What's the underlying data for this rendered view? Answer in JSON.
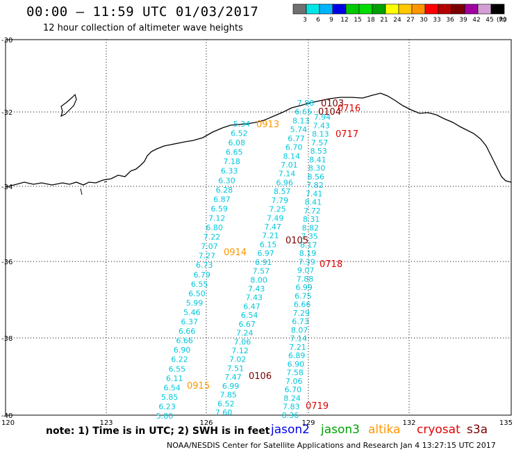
{
  "header": {
    "title": "00:00 – 11:59 UTC 01/03/2017",
    "subtitle": "12 hour collection of altimeter wave heights"
  },
  "colorbar": {
    "colors": [
      "#707070",
      "#00e6e6",
      "#00b4ff",
      "#0000e6",
      "#00c800",
      "#00dc00",
      "#00a000",
      "#ffff00",
      "#ffc800",
      "#ff9600",
      "#ff0000",
      "#b40000",
      "#7a0000",
      "#a000a0",
      "#d2a0d2",
      "#000000"
    ],
    "ticks": [
      "3",
      "6",
      "9",
      "12",
      "15",
      "18",
      "21",
      "24",
      "27",
      "30",
      "33",
      "36",
      "39",
      "42",
      "45",
      "70"
    ],
    "unit": "(ft)"
  },
  "axes": {
    "x_ticks": [
      "120",
      "123",
      "126",
      "129",
      "132",
      "135"
    ],
    "y_ticks": [
      "-30",
      "-32",
      "-34",
      "-36",
      "-38",
      "-40"
    ]
  },
  "passes": [
    {
      "label": "0103",
      "color": "#7a0000"
    },
    {
      "label": "0104",
      "color": "#7a0000"
    },
    {
      "label": "0716",
      "color": "#e00000"
    },
    {
      "label": "0717",
      "color": "#e00000"
    },
    {
      "label": "0913",
      "color": "#ff9600"
    },
    {
      "label": "0914",
      "color": "#ff9600"
    },
    {
      "label": "0915",
      "color": "#ff9600"
    },
    {
      "label": "0105",
      "color": "#7a0000"
    },
    {
      "label": "0718",
      "color": "#e00000"
    },
    {
      "label": "0106",
      "color": "#7a0000"
    },
    {
      "label": "0719",
      "color": "#e00000"
    }
  ],
  "tracks": {
    "track_a": [
      "5.34",
      "6.52",
      "6.08",
      "6.65",
      "7.18",
      "6.33",
      "6.30",
      "6.28",
      "6.87",
      "6.59",
      "7.12",
      "6.80",
      "7.22",
      "7.07",
      "7.27",
      "6.73",
      "6.79",
      "6.55",
      "6.50",
      "5.99",
      "5.46",
      "6.37",
      "6.66",
      "6.66",
      "6.90",
      "6.22",
      "6.55",
      "6.11",
      "6.54",
      "5.85",
      "6.23",
      "5.80"
    ],
    "track_b": [
      "7.88",
      "6.65",
      "8.13",
      "5.74",
      "6.77",
      "6.70",
      "8.14",
      "7.01",
      "7.14",
      "6.96",
      "8.57",
      "7.79",
      "7.25",
      "7.49",
      "7.47",
      "7.21",
      "6.15",
      "6.97",
      "6.91",
      "7.57",
      "8.00",
      "7.43",
      "7.43",
      "6.47",
      "6.54",
      "6.67",
      "7.24",
      "7.06",
      "7.12",
      "7.02",
      "7.51",
      "7.47",
      "6.99",
      "7.85",
      "6.52",
      "7.60"
    ],
    "track_c": [
      "7.94",
      "7.43",
      "8.13",
      "7.57",
      "8.53",
      "8.41",
      "8.30",
      "8.56",
      "7.82",
      "7.41",
      "8.41",
      "7.72",
      "8.31",
      "8.82",
      "7.35",
      "8.17",
      "8.19",
      "7.39",
      "9.07",
      "7.88",
      "6.99",
      "6.75",
      "6.66",
      "7.29",
      "6.73",
      "8.07",
      "7.14",
      "7.21",
      "6.89",
      "6.90",
      "7.58",
      "7.06",
      "6.70",
      "8.24",
      "7.83",
      "8.36"
    ]
  },
  "footer": {
    "note": "note:  1) Time is in UTC; 2) SWH is in feet",
    "satellites": [
      {
        "name": "jason2",
        "color": "#0000e6"
      },
      {
        "name": "jason3",
        "color": "#00a000"
      },
      {
        "name": "altika",
        "color": "#ff9600"
      },
      {
        "name": "cryosat",
        "color": "#e00000"
      },
      {
        "name": "s3a",
        "color": "#7a0000"
      }
    ],
    "credit": "NOAA/NESDIS Center for Satellite Applications and Research    Jan  4 13:27:15 UTC 2017"
  }
}
